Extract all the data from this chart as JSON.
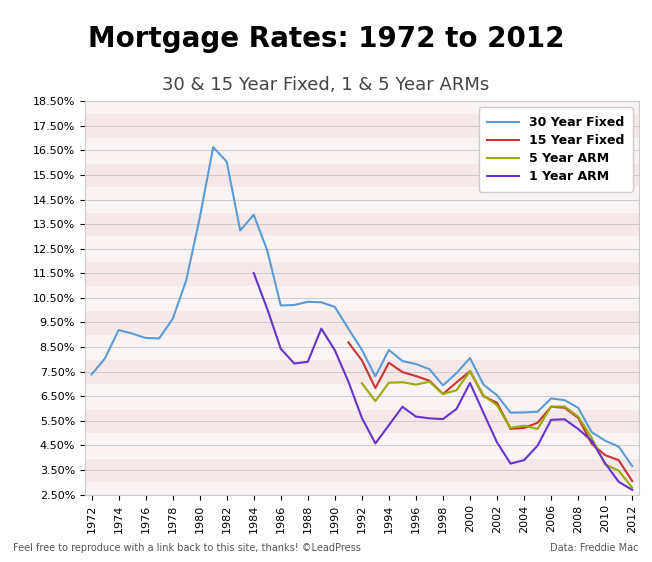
{
  "title": "Mortgage Rates: 1972 to 2012",
  "subtitle": "30 & 15 Year Fixed, 1 & 5 Year ARMs",
  "footer_left": "Feel free to reproduce with a link back to this site, thanks! ©LeadPress",
  "footer_right": "Data: Freddie Mac",
  "xlabel": "",
  "ylabel": "",
  "ylim": [
    2.5,
    18.5
  ],
  "yticks": [
    2.5,
    3.5,
    4.5,
    5.5,
    6.5,
    7.5,
    8.5,
    9.5,
    10.5,
    11.5,
    12.5,
    13.5,
    14.5,
    15.5,
    16.5,
    17.5,
    18.5
  ],
  "xticks": [
    1972,
    1974,
    1976,
    1978,
    1980,
    1982,
    1984,
    1986,
    1988,
    1990,
    1992,
    1994,
    1996,
    1998,
    2000,
    2002,
    2004,
    2006,
    2008,
    2010,
    2012
  ],
  "bg_flag_color": "#f5e8e8",
  "line_colors": {
    "30yr": "#5b9bd5",
    "15yr": "#cc3333",
    "5arm": "#99aa00",
    "1arm": "#6633cc"
  },
  "legend_labels": [
    "30 Year Fixed",
    "15 Year Fixed",
    "5 Year ARM",
    "1 Year ARM"
  ],
  "years_30yr": [
    1972,
    1973,
    1974,
    1975,
    1976,
    1977,
    1978,
    1979,
    1980,
    1981,
    1982,
    1983,
    1984,
    1985,
    1986,
    1987,
    1988,
    1989,
    1990,
    1991,
    1992,
    1993,
    1994,
    1995,
    1996,
    1997,
    1998,
    1999,
    2000,
    2001,
    2002,
    2003,
    2004,
    2005,
    2006,
    2007,
    2008,
    2009,
    2010,
    2011,
    2012
  ],
  "vals_30yr": [
    7.38,
    8.04,
    9.19,
    9.05,
    8.87,
    8.85,
    9.64,
    11.2,
    13.74,
    16.63,
    16.04,
    13.24,
    13.88,
    12.43,
    10.19,
    10.21,
    10.34,
    10.32,
    10.13,
    9.25,
    8.39,
    7.31,
    8.38,
    7.93,
    7.81,
    7.6,
    6.94,
    7.44,
    8.05,
    6.97,
    6.54,
    5.83,
    5.84,
    5.87,
    6.41,
    6.34,
    6.03,
    5.04,
    4.69,
    4.45,
    3.66
  ],
  "years_15yr": [
    1991,
    1992,
    1993,
    1994,
    1995,
    1996,
    1997,
    1998,
    1999,
    2000,
    2001,
    2002,
    2003,
    2004,
    2005,
    2006,
    2007,
    2008,
    2009,
    2010,
    2011,
    2012
  ],
  "vals_15yr": [
    8.69,
    7.96,
    6.83,
    7.86,
    7.48,
    7.32,
    7.13,
    6.59,
    7.06,
    7.52,
    6.5,
    6.23,
    5.17,
    5.21,
    5.42,
    6.07,
    6.03,
    5.62,
    4.57,
    4.1,
    3.9,
    3.05
  ],
  "years_5arm": [
    1992,
    1993,
    1994,
    1995,
    1996,
    1997,
    1998,
    1999,
    2000,
    2001,
    2002,
    2003,
    2004,
    2005,
    2006,
    2007,
    2008,
    2009,
    2010,
    2011,
    2012
  ],
  "vals_5arm": [
    7.03,
    6.3,
    7.05,
    7.07,
    6.97,
    7.09,
    6.59,
    6.74,
    7.52,
    6.53,
    6.13,
    5.21,
    5.3,
    5.17,
    6.08,
    6.08,
    5.67,
    4.81,
    3.73,
    3.47,
    2.78
  ],
  "years_1arm": [
    1984,
    1985,
    1986,
    1987,
    1988,
    1989,
    1990,
    1991,
    1992,
    1993,
    1994,
    1995,
    1996,
    1997,
    1998,
    1999,
    2000,
    2001,
    2002,
    2003,
    2004,
    2005,
    2006,
    2007,
    2008,
    2009,
    2010,
    2011,
    2012
  ],
  "vals_1arm": [
    11.51,
    10.05,
    8.43,
    7.83,
    7.9,
    9.25,
    8.37,
    7.1,
    5.62,
    4.58,
    5.32,
    6.07,
    5.67,
    5.6,
    5.57,
    5.98,
    7.04,
    5.82,
    4.62,
    3.76,
    3.9,
    4.49,
    5.54,
    5.56,
    5.17,
    4.69,
    3.77,
    3.02,
    2.69
  ]
}
